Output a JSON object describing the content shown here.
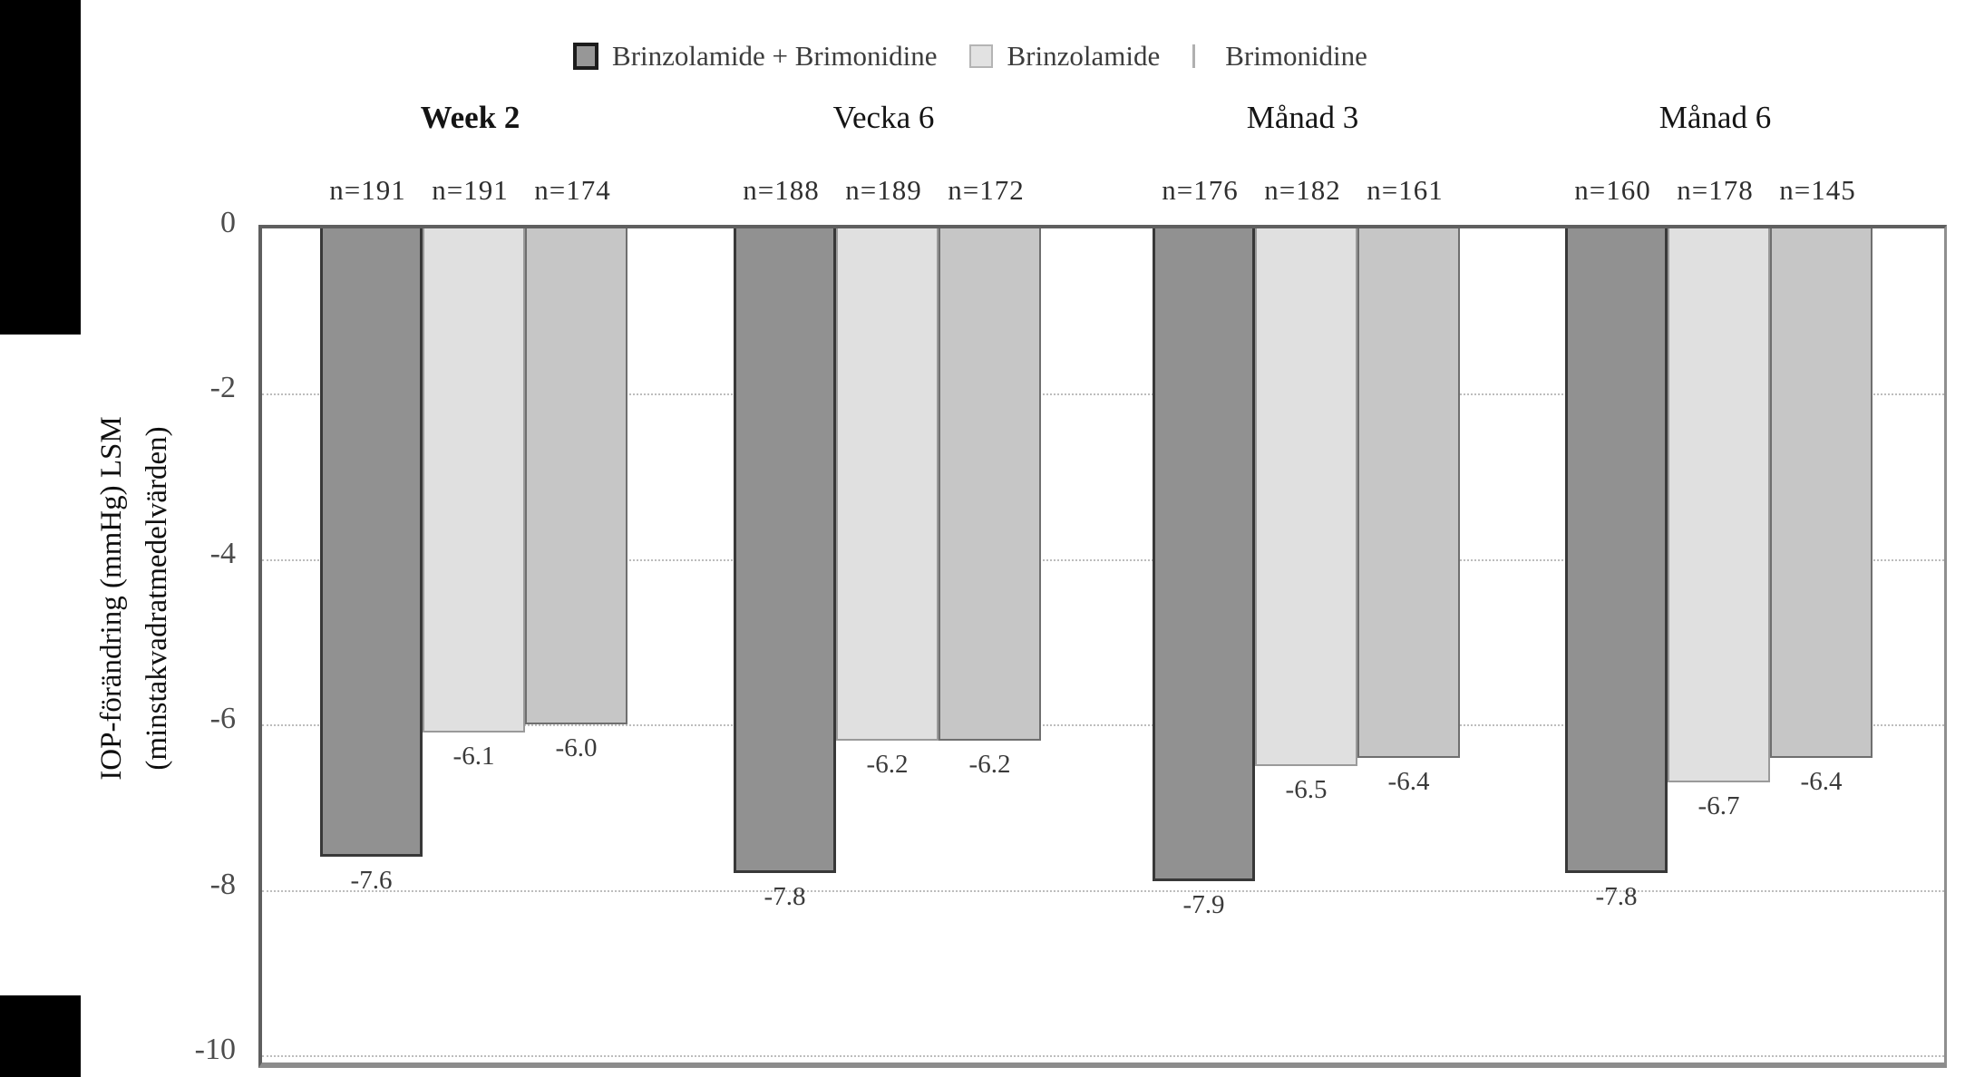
{
  "legend": {
    "items": [
      {
        "label": "Brinzolamide + Brimonidine",
        "swatch": "filled",
        "color": "#979797",
        "border": "#1c1c1c"
      },
      {
        "label": "Brinzolamide",
        "swatch": "light",
        "color": "#e2e2e2",
        "border": "#b4b4b4"
      },
      {
        "label": "Brimonidine",
        "swatch": "line",
        "color": "#b0b0b0"
      }
    ]
  },
  "chart_data": {
    "type": "bar",
    "title": "",
    "categories": [
      "Week 2",
      "Vecka 6",
      "Månad 3",
      "Månad 6"
    ],
    "category_bold": [
      true,
      false,
      false,
      false
    ],
    "n_labels": [
      [
        "n=191",
        "n=191",
        "n=174"
      ],
      [
        "n=188",
        "n=189",
        "n=172"
      ],
      [
        "n=176",
        "n=182",
        "n=161"
      ],
      [
        "n=160",
        "n=178",
        "n=145"
      ]
    ],
    "series": [
      {
        "name": "Brinzolamide + Brimonidine",
        "values": [
          -7.6,
          -7.8,
          -7.9,
          -7.8
        ],
        "fill": "#919191",
        "border": "#383838",
        "border_px": 3
      },
      {
        "name": "Brinzolamide",
        "values": [
          -6.1,
          -6.2,
          -6.5,
          -6.7
        ],
        "fill": "#e0e0e0",
        "border": "#9a9a9a",
        "border_px": 2
      },
      {
        "name": "Brimonidine",
        "values": [
          -6.0,
          -6.2,
          -6.4,
          -6.4
        ],
        "fill": "#c6c6c6",
        "border": "#6f6f6f",
        "border_px": 2
      }
    ],
    "ylabel_line1": "IOP-förändring (mmHg) LSM",
    "ylabel_line2": "(minstakvadratmedelvärden)",
    "yticks": [
      0,
      -2,
      -4,
      -6,
      -8,
      -10
    ],
    "ylim": [
      -10,
      0
    ],
    "grid": "dotted horizontal lines at each tick",
    "legend_position": "top center"
  }
}
